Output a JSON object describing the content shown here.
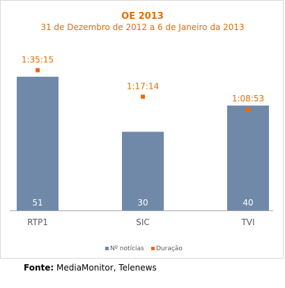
{
  "chart_data": {
    "type": "bar",
    "title": "OE 2013",
    "subtitle": "31 de Dezembro de 2012 a 6 de Janeiro da 2013",
    "categories": [
      "RTP1",
      "SIC",
      "TVI"
    ],
    "series": [
      {
        "name": "Nº notícias",
        "type": "bar",
        "values": [
          51,
          30,
          40
        ],
        "labels": [
          "51",
          "30",
          "40"
        ]
      },
      {
        "name": "Duração",
        "type": "point",
        "values": [
          "1:35:15",
          "1:17:14",
          "1:08:53"
        ],
        "labels": [
          "1:35:15",
          "1:17:14",
          "1:08:53"
        ]
      }
    ],
    "legend_position": "bottom",
    "grid": false,
    "colors": {
      "bars": "#7089a8",
      "points": "#f0690f",
      "text": "#e36c09",
      "axis": "#a6a6a6"
    }
  },
  "source": {
    "label": "Fonte:",
    "text": "MediaMonitor, Telenews"
  }
}
